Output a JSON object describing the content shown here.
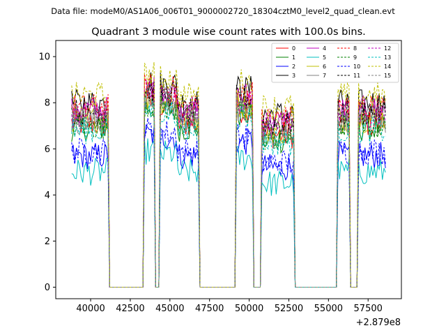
{
  "chart_data": {
    "type": "line",
    "suptitle": "Data file: modeM0/AS1A06_006T01_9000002720_18304cztM0_level2_quad_clean.evt",
    "title": "Quadrant 3 module wise count rates with 100.0s bins.",
    "xlabel": "",
    "ylabel": "",
    "x_offset_label": "+2.879e8",
    "xlim": [
      37800,
      59600
    ],
    "ylim": [
      -0.5,
      10.7
    ],
    "xticks": [
      40000,
      42500,
      45000,
      47500,
      50000,
      52500,
      55000,
      57500
    ],
    "yticks": [
      0,
      2,
      4,
      6,
      8,
      10
    ],
    "grid": false,
    "legend_position": "top-right",
    "legend_columns": 4,
    "segments": [
      [
        38800,
        41100
      ],
      [
        43400,
        44000
      ],
      [
        44400,
        46800
      ],
      [
        49200,
        50200
      ],
      [
        50800,
        52800
      ],
      [
        55600,
        56300
      ],
      [
        56900,
        58600
      ]
    ],
    "zero_ranges": [
      [
        41300,
        43200
      ],
      [
        44100,
        44300
      ],
      [
        47000,
        49000
      ],
      [
        50350,
        50650
      ],
      [
        53000,
        55400
      ],
      [
        56450,
        56750
      ]
    ],
    "series": [
      {
        "name": "0",
        "color": "#ff0000",
        "dash": "solid",
        "base": 7.1
      },
      {
        "name": "1",
        "color": "#008000",
        "dash": "solid",
        "base": 6.9
      },
      {
        "name": "2",
        "color": "#0000ff",
        "dash": "solid",
        "base": 5.7
      },
      {
        "name": "3",
        "color": "#000000",
        "dash": "solid",
        "base": 8.0
      },
      {
        "name": "4",
        "color": "#bf00bf",
        "dash": "solid",
        "base": 7.7
      },
      {
        "name": "5",
        "color": "#00bfbf",
        "dash": "solid",
        "base": 5.0
      },
      {
        "name": "6",
        "color": "#bfbf00",
        "dash": "solid",
        "base": 7.3
      },
      {
        "name": "7",
        "color": "#808080",
        "dash": "solid",
        "base": 7.2
      },
      {
        "name": "8",
        "color": "#ff0000",
        "dash": "dashed",
        "base": 7.8
      },
      {
        "name": "9",
        "color": "#008000",
        "dash": "dashed",
        "base": 7.0
      },
      {
        "name": "10",
        "color": "#0000ff",
        "dash": "dashed",
        "base": 5.9
      },
      {
        "name": "11",
        "color": "#000000",
        "dash": "dashed",
        "base": 7.6
      },
      {
        "name": "12",
        "color": "#bf00bf",
        "dash": "dashed",
        "base": 7.5
      },
      {
        "name": "13",
        "color": "#00bfbf",
        "dash": "dashed",
        "base": 6.8
      },
      {
        "name": "14",
        "color": "#bfbf00",
        "dash": "dashed",
        "base": 8.3
      },
      {
        "name": "15",
        "color": "#808080",
        "dash": "dashed",
        "base": 7.4
      }
    ]
  }
}
